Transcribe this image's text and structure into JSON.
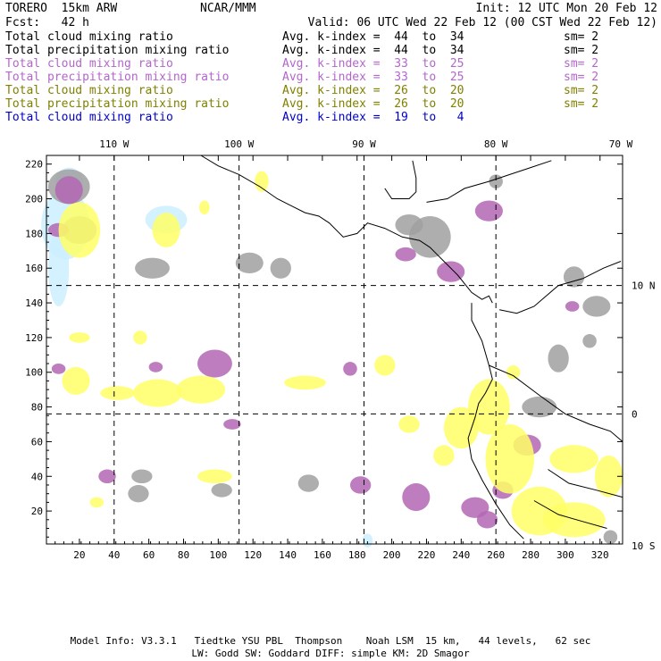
{
  "header": {
    "model": "TORERO  15km ARW",
    "org": "NCAR/MMM",
    "init": "Init: 12 UTC Mon 20 Feb 12",
    "fcst": "Fcst:   42 h",
    "valid": "Valid: 06 UTC Wed 22 Feb 12 (00 CST Wed 22 Feb 12)"
  },
  "legend": [
    {
      "var": "Total cloud mixing ratio",
      "avg": "Avg. k-index =  44  to  34",
      "sm": "sm= 2",
      "color": "#000000"
    },
    {
      "var": "Total precipitation mixing ratio",
      "avg": "Avg. k-index =  44  to  34",
      "sm": "sm= 2",
      "color": "#000000"
    },
    {
      "var": "Total cloud mixing ratio",
      "avg": "Avg. k-index =  33  to  25",
      "sm": "sm= 2",
      "color": "#b366cc"
    },
    {
      "var": "Total precipitation mixing ratio",
      "avg": "Avg. k-index =  33  to  25",
      "sm": "sm= 2",
      "color": "#b366cc"
    },
    {
      "var": "Total cloud mixing ratio",
      "avg": "Avg. k-index =  26  to  20",
      "sm": "sm= 2",
      "color": "#808000"
    },
    {
      "var": "Total precipitation mixing ratio",
      "avg": "Avg. k-index =  26  to  20",
      "sm": "sm= 2",
      "color": "#808000"
    },
    {
      "var": "Total cloud mixing ratio",
      "avg": "Avg. k-index =  19  to   4",
      "sm": "",
      "color": "#0000cc"
    }
  ],
  "map": {
    "top_lon_labels": [
      {
        "text": "110 W",
        "gx": 40
      },
      {
        "text": "100 W",
        "gx": 112
      },
      {
        "text": "90 W",
        "gx": 184
      },
      {
        "text": "80 W",
        "gx": 260
      },
      {
        "text": "70 W",
        "gx": 332
      }
    ],
    "right_lat_labels": [
      {
        "text": "10 N",
        "gy": 150
      },
      {
        "text": "0",
        "gy": 76
      },
      {
        "text": "10 S",
        "gy": 0
      }
    ],
    "x_ticks": [
      20,
      40,
      60,
      80,
      100,
      120,
      140,
      160,
      180,
      200,
      220,
      240,
      260,
      280,
      300,
      320
    ],
    "y_ticks": [
      20,
      40,
      60,
      80,
      100,
      120,
      140,
      160,
      180,
      200,
      220
    ],
    "grid_x": [
      40,
      112,
      184,
      260
    ],
    "grid_y": [
      76,
      150
    ],
    "x_range": [
      1,
      333
    ],
    "y_range": [
      1,
      225
    ],
    "colors": {
      "gray": "#a0a0a0",
      "purple": "#b366b3",
      "yellow": "#ffff66",
      "lightblue": "#cceeff"
    }
  },
  "footer": {
    "line1": "Model Info: V3.3.1   Tiedtke YSU PBL  Thompson    Noah LSM  15 km,   44 levels,   62 sec",
    "line2": "LW: Godd SW: Goddard DIFF: simple KM: 2D Smagor"
  }
}
